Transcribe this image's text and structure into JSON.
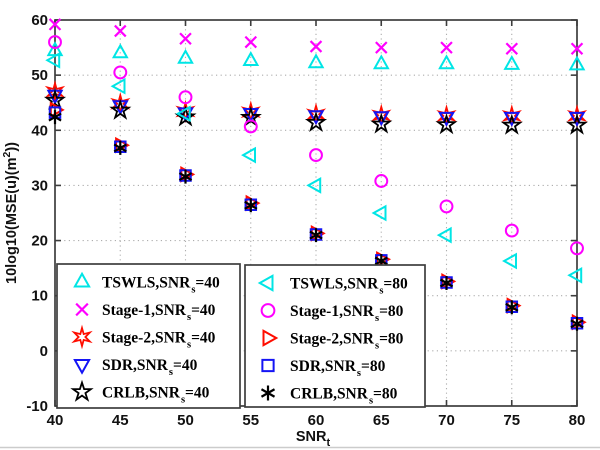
{
  "figure": {
    "background": "#ffffff",
    "axis_color": "#3d3d3d",
    "grid_color": "#aeaeae",
    "footer_divider_color": "#cccccc"
  },
  "chart_data": {
    "type": "scatter",
    "title": "",
    "xlabel": "SNR",
    "xlabel_sub": "t",
    "ylabel_main": "10log10(MSE(u)(m",
    "ylabel_sup": "2",
    "ylabel_end": "))",
    "xlim": [
      40,
      80
    ],
    "ylim": [
      -10,
      60
    ],
    "xticks": [
      40,
      45,
      50,
      55,
      60,
      65,
      70,
      75,
      80
    ],
    "yticks": [
      -10,
      0,
      10,
      20,
      30,
      40,
      50,
      60
    ],
    "grid": true,
    "grid_x": [
      45,
      50,
      55,
      60,
      65,
      70,
      75
    ],
    "grid_y": [
      0,
      10,
      20,
      30,
      40,
      50
    ],
    "x": [
      40,
      45,
      50,
      55,
      60,
      65,
      70,
      75,
      80
    ],
    "series": [
      {
        "id": "tswls-snrs40",
        "label_main": "TSWLS,SNR",
        "label_sub": "s",
        "label_eq": "=40",
        "marker": "triangle-up",
        "color": "#00E5E5",
        "values": [
          54.4,
          54.0,
          53.0,
          52.6,
          52.2,
          52.0,
          52.0,
          51.9,
          51.8
        ]
      },
      {
        "id": "stage1-snrs40",
        "label_main": "Stage-1,SNR",
        "label_sub": "s",
        "label_eq": "=40",
        "marker": "cross",
        "color": "#FF00FF",
        "values": [
          59.2,
          58.0,
          56.6,
          56.0,
          55.2,
          55.0,
          55.0,
          54.8,
          54.8
        ]
      },
      {
        "id": "stage2-snrs40",
        "label_main": "Stage-2,SNR",
        "label_sub": "s",
        "label_eq": "=40",
        "marker": "hexagram",
        "color": "#FF0D00",
        "values": [
          47.0,
          44.8,
          43.4,
          43.3,
          42.9,
          42.7,
          42.6,
          42.6,
          42.6
        ]
      },
      {
        "id": "sdr-snrs40",
        "label_main": "SDR,SNR",
        "label_sub": "s",
        "label_eq": "=40",
        "marker": "triangle-down",
        "color": "#1414F5",
        "values": [
          46.4,
          44.5,
          43.2,
          43.1,
          42.7,
          42.5,
          42.4,
          42.4,
          42.4
        ]
      },
      {
        "id": "crlb-snrs40",
        "label_main": "CRLB,SNR",
        "label_sub": "s",
        "label_eq": "=40",
        "marker": "pentagram",
        "color": "#000000",
        "values": [
          45.4,
          43.6,
          42.4,
          42.3,
          41.4,
          41.1,
          41.0,
          40.9,
          40.9
        ]
      },
      {
        "id": "tswls-snrs80",
        "label_main": "TSWLS,SNR",
        "label_sub": "s",
        "label_eq": "=80",
        "marker": "triangle-left",
        "color": "#00E5E5",
        "values": [
          52.7,
          48.0,
          43.0,
          35.5,
          30.0,
          25.0,
          21.0,
          16.3,
          13.7
        ]
      },
      {
        "id": "stage1-snrs80",
        "label_main": "Stage-1,SNR",
        "label_sub": "s",
        "label_eq": "=80",
        "marker": "circle",
        "color": "#FF00FF",
        "values": [
          56.0,
          50.5,
          46.0,
          40.7,
          35.5,
          30.8,
          26.2,
          21.8,
          18.6
        ]
      },
      {
        "id": "stage2-snrs80",
        "label_main": "Stage-2,SNR",
        "label_sub": "s",
        "label_eq": "=80",
        "marker": "triangle-right",
        "color": "#FF0D00",
        "values": [
          43.7,
          37.3,
          32.0,
          26.8,
          21.3,
          16.6,
          12.6,
          8.2,
          5.2
        ]
      },
      {
        "id": "sdr-snrs80",
        "label_main": "SDR,SNR",
        "label_sub": "s",
        "label_eq": "=80",
        "marker": "square",
        "color": "#1414F5",
        "values": [
          43.2,
          37.0,
          31.8,
          26.5,
          21.1,
          16.4,
          12.4,
          8.0,
          5.0
        ]
      },
      {
        "id": "crlb-snrs80",
        "label_main": "CRLB,SNR",
        "label_sub": "s",
        "label_eq": "=80",
        "marker": "asterisk",
        "color": "#000000",
        "values": [
          42.4,
          36.8,
          31.6,
          26.4,
          21.0,
          16.3,
          12.3,
          7.9,
          4.9
        ]
      }
    ],
    "legend": {
      "position": "inside-bottom-left",
      "boxes": [
        {
          "entries": [
            0,
            1,
            2,
            3,
            4
          ]
        },
        {
          "entries": [
            5,
            6,
            7,
            8,
            9
          ]
        }
      ]
    }
  }
}
